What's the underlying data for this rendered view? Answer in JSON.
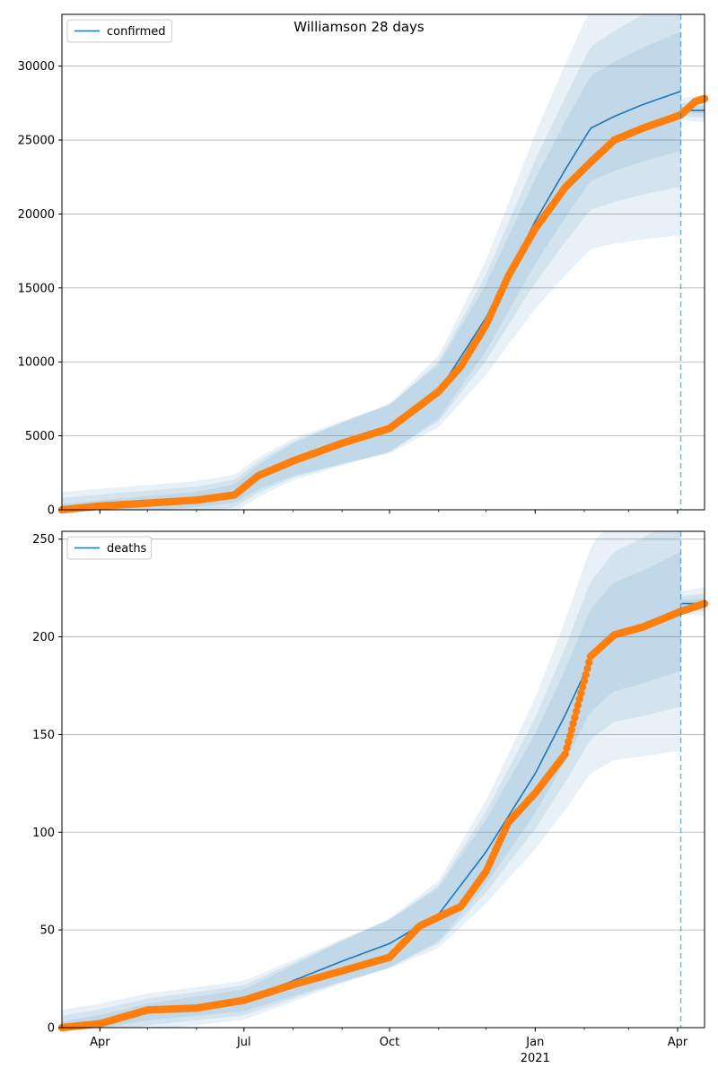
{
  "title": "Williamson 28 days",
  "colors": {
    "model": "#1f77b4",
    "observed": "#ff7f0e",
    "band": "#1f77b4",
    "grid": "#b0b0b0",
    "forecast_line": "#1f77b4"
  },
  "x_axis": {
    "date_range": [
      "2020-03-08",
      "2021-04-18"
    ],
    "forecast_start": "2021-04-03",
    "ticks": [
      {
        "date": "2020-04-01",
        "label": "Apr"
      },
      {
        "date": "2020-07-01",
        "label": "Jul"
      },
      {
        "date": "2020-10-01",
        "label": "Oct"
      },
      {
        "date": "2021-01-01",
        "label": "Jan"
      },
      {
        "date": "2021-04-01",
        "label": "Apr"
      }
    ],
    "year_label": {
      "date": "2021-01-01",
      "label": "2021"
    }
  },
  "chart_data": [
    {
      "type": "line",
      "legend": "confirmed",
      "legend_position": "upper-left",
      "grid": "y",
      "ylim": [
        0,
        33500
      ],
      "yticks": [
        0,
        5000,
        10000,
        15000,
        20000,
        25000,
        30000
      ],
      "model_final": 27000,
      "model": {
        "dates": [
          "2020-03-08",
          "2020-04-01",
          "2020-05-01",
          "2020-06-01",
          "2020-06-25",
          "2020-07-10",
          "2020-08-01",
          "2020-09-01",
          "2020-10-01",
          "2020-11-01",
          "2020-12-01",
          "2021-01-01",
          "2021-01-20",
          "2021-02-05",
          "2021-02-20",
          "2021-03-10",
          "2021-04-03"
        ],
        "values": [
          0,
          200,
          450,
          700,
          1100,
          2200,
          3400,
          4500,
          5500,
          8000,
          13000,
          19500,
          23000,
          25800,
          26600,
          27400,
          28300
        ]
      },
      "band_scale": [
        0.1,
        0.2,
        0.33
      ],
      "observed": {
        "dates": [
          "2020-03-08",
          "2020-04-01",
          "2020-05-01",
          "2020-06-01",
          "2020-06-25",
          "2020-07-10",
          "2020-08-01",
          "2020-09-01",
          "2020-10-01",
          "2020-11-01",
          "2020-11-15",
          "2020-12-01",
          "2020-12-15",
          "2021-01-01",
          "2021-01-20",
          "2021-02-05",
          "2021-02-20",
          "2021-03-10",
          "2021-04-03",
          "2021-04-12",
          "2021-04-18"
        ],
        "values": [
          0,
          250,
          450,
          650,
          1000,
          2300,
          3300,
          4500,
          5500,
          8000,
          9700,
          12500,
          15800,
          19000,
          21800,
          23500,
          25000,
          25800,
          26700,
          27600,
          27800
        ],
        "count": 407
      }
    },
    {
      "type": "line",
      "legend": "deaths",
      "legend_position": "upper-left",
      "grid": "y",
      "ylim": [
        0,
        254
      ],
      "yticks": [
        0,
        50,
        100,
        150,
        200,
        250
      ],
      "model_final": 217,
      "model": {
        "dates": [
          "2020-03-08",
          "2020-04-01",
          "2020-05-01",
          "2020-06-01",
          "2020-07-01",
          "2020-08-01",
          "2020-09-01",
          "2020-10-01",
          "2020-11-01",
          "2020-12-01",
          "2021-01-01",
          "2021-01-20",
          "2021-02-05",
          "2021-02-20",
          "2021-03-10",
          "2021-04-03"
        ],
        "values": [
          0,
          3,
          8,
          11,
          14,
          24,
          34,
          43,
          58,
          90,
          130,
          160,
          188,
          200,
          205,
          213
        ]
      },
      "band_scale": [
        0.1,
        0.2,
        0.32
      ],
      "observed": {
        "dates": [
          "2020-03-08",
          "2020-04-01",
          "2020-05-01",
          "2020-06-01",
          "2020-07-01",
          "2020-08-01",
          "2020-09-01",
          "2020-10-01",
          "2020-10-20",
          "2020-11-15",
          "2020-12-01",
          "2020-12-15",
          "2021-01-01",
          "2021-01-20",
          "2021-02-05",
          "2021-02-20",
          "2021-03-10",
          "2021-04-03",
          "2021-04-18"
        ],
        "values": [
          0,
          2,
          9,
          10,
          14,
          22,
          29,
          36,
          52,
          62,
          80,
          105,
          120,
          140,
          190,
          201,
          205,
          213,
          217
        ],
        "count": 407
      }
    }
  ]
}
